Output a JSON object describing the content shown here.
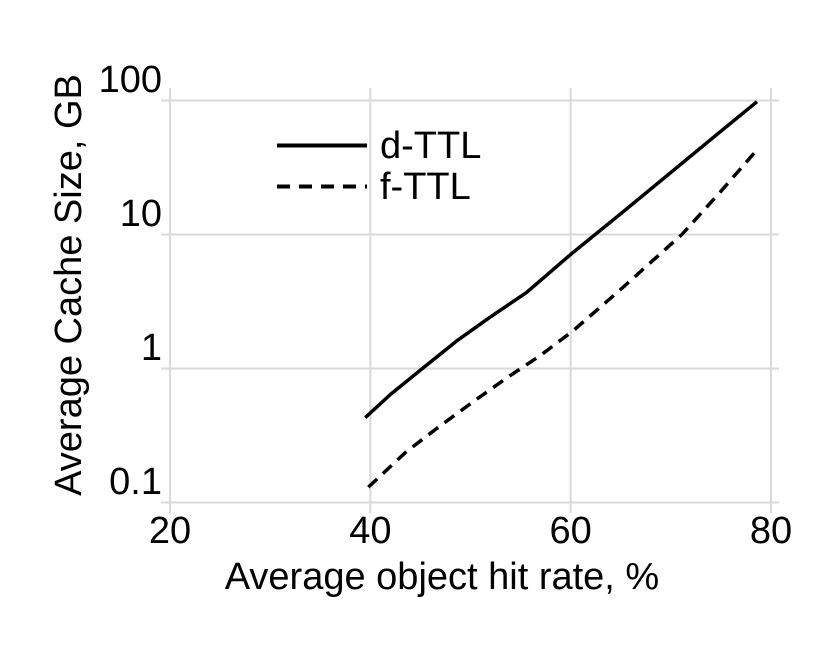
{
  "figure": {
    "background": "#ffffff"
  },
  "chart_data": {
    "type": "line",
    "title": "",
    "xlabel": "Average object hit rate, %",
    "ylabel": "Average Cache Size, GB",
    "x_axis": {
      "min": 20,
      "max": 80,
      "ticks": [
        20,
        40,
        60,
        80
      ],
      "tick_labels": [
        "20",
        "40",
        "60",
        "80"
      ]
    },
    "y_axis": {
      "scale": "log",
      "min": 0.1,
      "max": 100,
      "ticks": [
        0.1,
        1,
        10,
        100
      ],
      "tick_labels": [
        "0.1",
        "1",
        "10",
        "100"
      ]
    },
    "grid": true,
    "legend_position": "upper-left-inside",
    "series": [
      {
        "name": "d-TTL",
        "style": "solid",
        "color": "#000000",
        "points": [
          [
            39.5,
            0.43
          ],
          [
            42,
            0.64
          ],
          [
            45.2,
            1.0
          ],
          [
            48.6,
            1.6
          ],
          [
            51.9,
            2.4
          ],
          [
            55.6,
            3.7
          ],
          [
            60,
            7.1
          ],
          [
            65,
            14.3
          ],
          [
            70,
            29
          ],
          [
            75,
            59
          ],
          [
            78.6,
            98
          ]
        ]
      },
      {
        "name": "f-TTL",
        "style": "dashed",
        "color": "#000000",
        "points": [
          [
            39.8,
            0.13
          ],
          [
            43.6,
            0.24
          ],
          [
            46.9,
            0.37
          ],
          [
            50.2,
            0.56
          ],
          [
            53.6,
            0.85
          ],
          [
            56.9,
            1.24
          ],
          [
            60.2,
            1.9
          ],
          [
            65,
            3.9
          ],
          [
            68,
            6.2
          ],
          [
            71.1,
            10
          ],
          [
            75,
            21
          ],
          [
            78.5,
            42
          ]
        ]
      }
    ],
    "colors": {
      "grid": "#d9d9d9",
      "text": "#000000",
      "line": "#000000"
    }
  }
}
